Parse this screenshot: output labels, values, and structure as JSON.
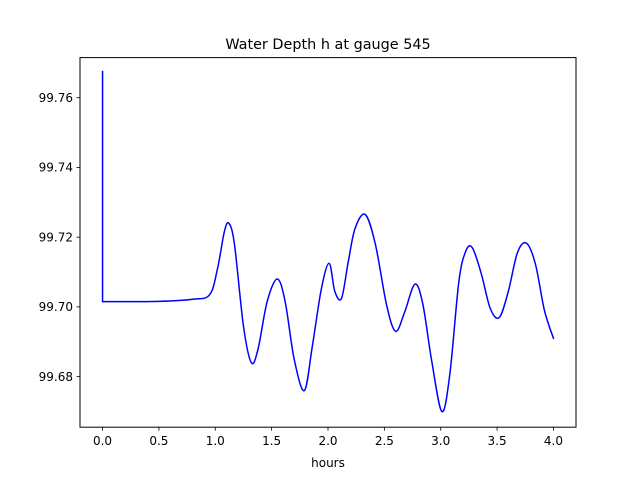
{
  "chart_data": {
    "type": "line",
    "title": "Water Depth h at gauge 545",
    "xlabel": "hours",
    "ylabel": "",
    "xlim": [
      -0.2,
      4.2
    ],
    "ylim": [
      99.6655,
      99.7715
    ],
    "xticks": [
      0.0,
      0.5,
      1.0,
      1.5,
      2.0,
      2.5,
      3.0,
      3.5,
      4.0
    ],
    "xtick_labels": [
      "0.0",
      "0.5",
      "1.0",
      "1.5",
      "2.0",
      "2.5",
      "3.0",
      "3.5",
      "4.0"
    ],
    "yticks": [
      99.68,
      99.7,
      99.72,
      99.74,
      99.76
    ],
    "ytick_labels": [
      "99.68",
      "99.70",
      "99.72",
      "99.74",
      "99.76"
    ],
    "grid": false,
    "series": [
      {
        "color": "#0000ff",
        "x": [
          0.0,
          0.0,
          0.0,
          0.5,
          0.8,
          0.95,
          1.02,
          1.08,
          1.12,
          1.17,
          1.25,
          1.32,
          1.38,
          1.46,
          1.55,
          1.62,
          1.7,
          1.79,
          1.86,
          1.94,
          2.01,
          2.06,
          2.12,
          2.18,
          2.24,
          2.33,
          2.42,
          2.52,
          2.6,
          2.68,
          2.77,
          2.84,
          2.92,
          3.01,
          3.08,
          3.16,
          3.22,
          3.28,
          3.36,
          3.44,
          3.52,
          3.6,
          3.68,
          3.76,
          3.84,
          3.92,
          4.0
        ],
        "y": [
          99.7675,
          99.7015,
          99.7015,
          99.7016,
          99.7022,
          99.7035,
          99.711,
          99.7215,
          99.724,
          99.718,
          99.6945,
          99.684,
          99.688,
          99.7015,
          99.708,
          99.7015,
          99.685,
          99.676,
          99.6885,
          99.705,
          99.7125,
          99.7045,
          99.7025,
          99.713,
          99.7225,
          99.7265,
          99.718,
          99.7005,
          99.693,
          99.6985,
          99.7065,
          99.701,
          99.6845,
          99.67,
          99.6805,
          99.707,
          99.7158,
          99.717,
          99.7095,
          99.6995,
          99.697,
          99.7045,
          99.7155,
          99.7183,
          99.7123,
          99.699,
          99.691
        ]
      }
    ]
  }
}
